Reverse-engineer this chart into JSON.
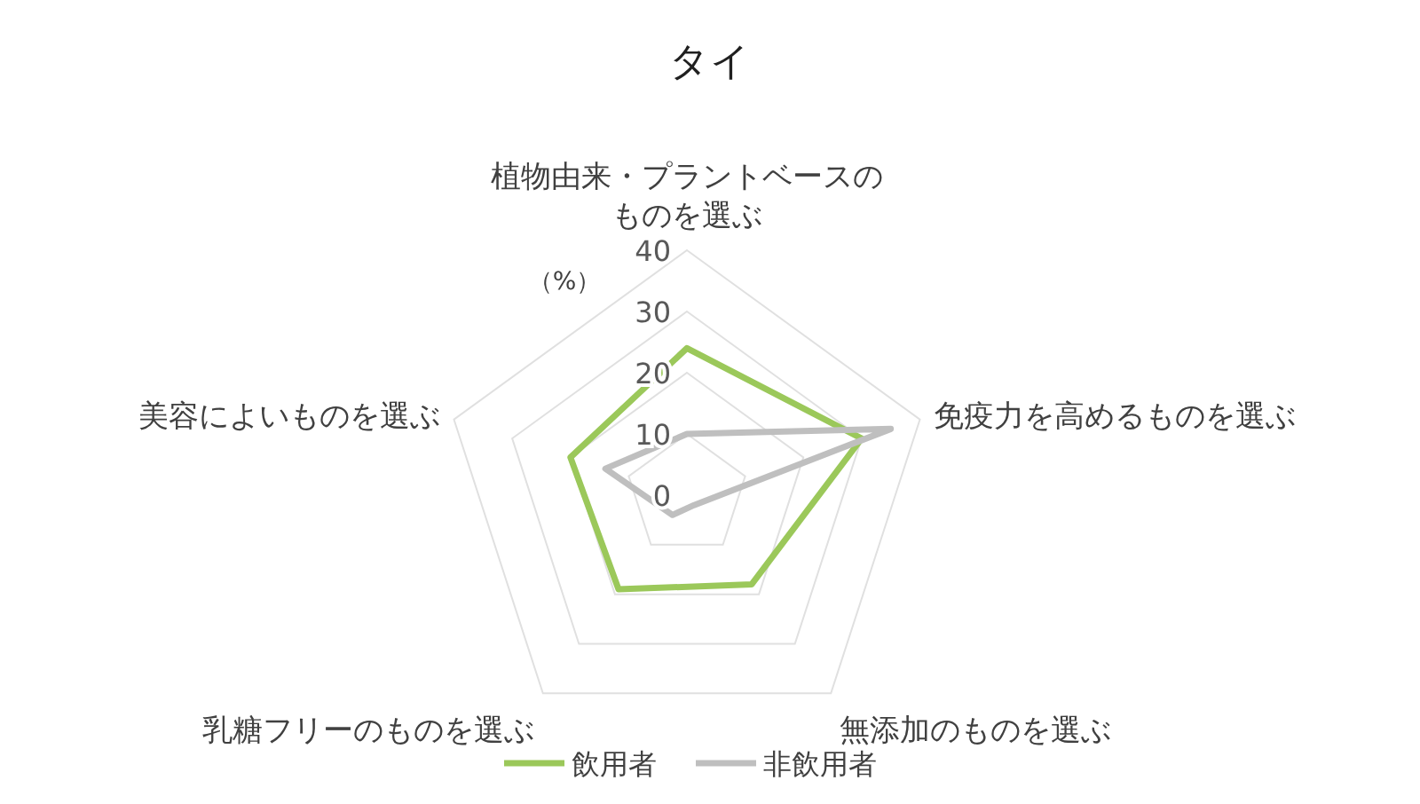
{
  "chart_data": {
    "type": "radar",
    "title": "タイ",
    "ylabel": "（%）",
    "categories": [
      "植物由来・プラントベースのものを選ぶ",
      "免疫力を高めるものを選ぶ",
      "無添加のものを選ぶ",
      "乳糖フリーのものを選ぶ",
      "美容によいものを選ぶ"
    ],
    "series": [
      {
        "name": "飲用者",
        "color": "#9bc85a",
        "values": [
          24,
          30,
          18,
          19,
          20
        ]
      },
      {
        "name": "非飲用者",
        "color": "#bfbfbf",
        "values": [
          10,
          35,
          2,
          4,
          14
        ]
      }
    ],
    "ylim": [
      0,
      40
    ],
    "yticks": [
      0,
      10,
      20,
      30,
      40
    ],
    "grid": true,
    "legend": "bottom",
    "marker": "none"
  }
}
